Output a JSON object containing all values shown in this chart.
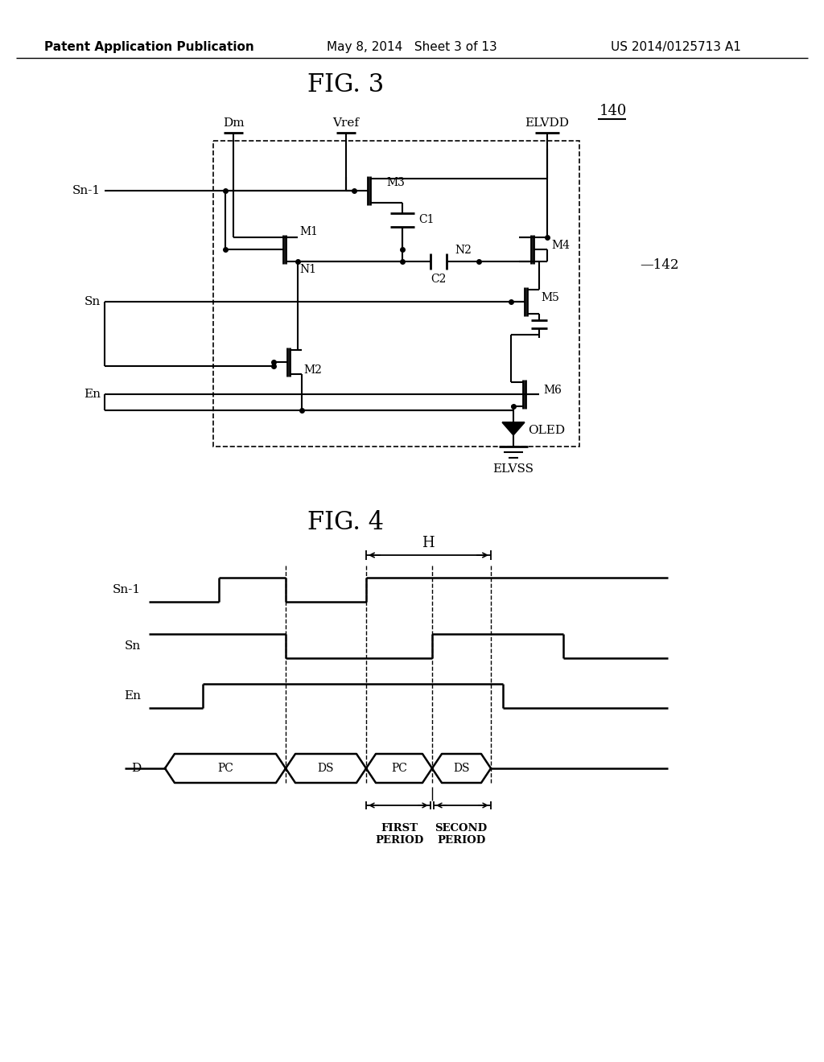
{
  "bg_color": "#ffffff",
  "header_text": "Patent Application Publication",
  "header_date": "May 8, 2014   Sheet 3 of 13",
  "header_patent": "US 2014/0125713 A1",
  "fig3_title": "FIG. 3",
  "fig4_title": "FIG. 4",
  "label_140": "140",
  "label_142": "142"
}
